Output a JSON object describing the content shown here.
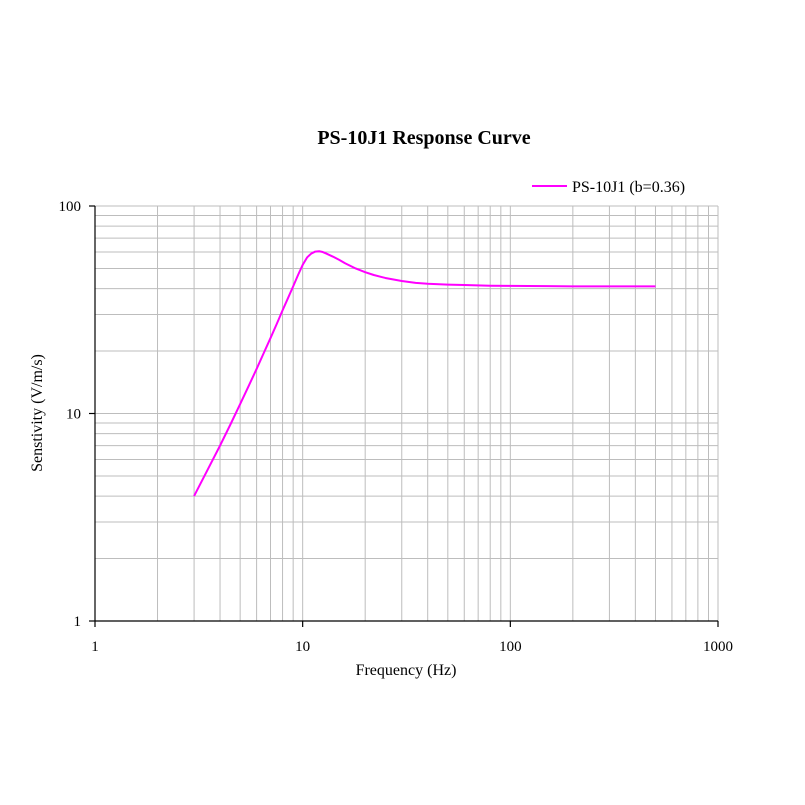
{
  "chart_data": {
    "type": "line",
    "title": "PS-10J1 Response Curve",
    "xlabel": "Frequency (Hz)",
    "ylabel": "Senstivity (V/m/s)",
    "x_scale": "log",
    "y_scale": "log",
    "xlim": [
      1,
      1000
    ],
    "ylim": [
      1,
      100
    ],
    "x_ticks": [
      1,
      10,
      100,
      1000
    ],
    "x_tick_labels": [
      "1",
      "10",
      "100",
      "1000"
    ],
    "y_ticks": [
      1,
      10,
      100
    ],
    "y_tick_labels": [
      "1",
      "10",
      "100"
    ],
    "grid": true,
    "legend_position": "top-right",
    "series": [
      {
        "name": "PS-10J1 (b=0.36)",
        "color": "#ff00ff",
        "x": [
          3,
          3.5,
          4,
          4.5,
          5,
          5.5,
          6,
          6.5,
          7,
          7.5,
          8,
          8.5,
          9,
          9.5,
          10,
          10.5,
          11,
          11.5,
          12,
          12.5,
          13,
          14,
          15,
          16,
          18,
          20,
          22,
          25,
          30,
          35,
          40,
          50,
          60,
          80,
          100,
          150,
          200,
          300,
          400,
          500
        ],
        "y": [
          4.0,
          5.4,
          7.0,
          8.9,
          11.1,
          13.6,
          16.4,
          19.6,
          23.1,
          27.0,
          31.4,
          36.0,
          41.0,
          46.5,
          52.0,
          56.5,
          59.0,
          60.3,
          60.5,
          60.0,
          59.0,
          57.0,
          55.0,
          53.0,
          50.0,
          48.0,
          46.5,
          45.0,
          43.5,
          42.6,
          42.2,
          41.8,
          41.6,
          41.3,
          41.2,
          41.1,
          41.0,
          41.0,
          41.0,
          41.0
        ]
      }
    ]
  }
}
